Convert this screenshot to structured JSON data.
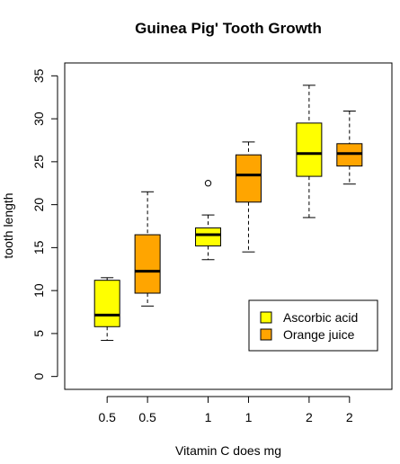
{
  "chart_data": {
    "type": "boxplot",
    "title": "Guinea Pig' Tooth Growth",
    "xlabel": "Vitamin C does mg",
    "ylabel": "tooth length",
    "ylim": [
      -1.5,
      36.5
    ],
    "yticks": [
      0,
      5,
      10,
      15,
      20,
      25,
      30,
      35
    ],
    "categories": [
      "0.5",
      "0.5",
      "1",
      "1",
      "2",
      "2"
    ],
    "series": [
      {
        "name": "Ascorbic acid",
        "color": "#ffff00",
        "boxes": [
          {
            "dose": "0.5",
            "whisker_low": 4.2,
            "q1": 5.8,
            "median": 7.15,
            "q3": 11.2,
            "whisker_high": 11.5,
            "outliers": []
          },
          {
            "dose": "1",
            "whisker_low": 13.6,
            "q1": 15.2,
            "median": 16.5,
            "q3": 17.3,
            "whisker_high": 18.8,
            "outliers": [
              22.5
            ]
          },
          {
            "dose": "2",
            "whisker_low": 18.5,
            "q1": 23.3,
            "median": 25.95,
            "q3": 29.5,
            "whisker_high": 33.9,
            "outliers": []
          }
        ]
      },
      {
        "name": "Orange juice",
        "color": "#ffa500",
        "boxes": [
          {
            "dose": "0.5",
            "whisker_low": 8.2,
            "q1": 9.7,
            "median": 12.25,
            "q3": 16.5,
            "whisker_high": 21.5,
            "outliers": []
          },
          {
            "dose": "1",
            "whisker_low": 14.5,
            "q1": 20.3,
            "median": 23.45,
            "q3": 25.8,
            "whisker_high": 27.3,
            "outliers": []
          },
          {
            "dose": "2",
            "whisker_low": 22.4,
            "q1": 24.5,
            "median": 25.95,
            "q3": 27.1,
            "whisker_high": 30.9,
            "outliers": []
          }
        ]
      }
    ],
    "legend": {
      "position": "bottom-right",
      "entries": [
        "Ascorbic acid",
        "Orange juice"
      ]
    },
    "grid": false
  }
}
